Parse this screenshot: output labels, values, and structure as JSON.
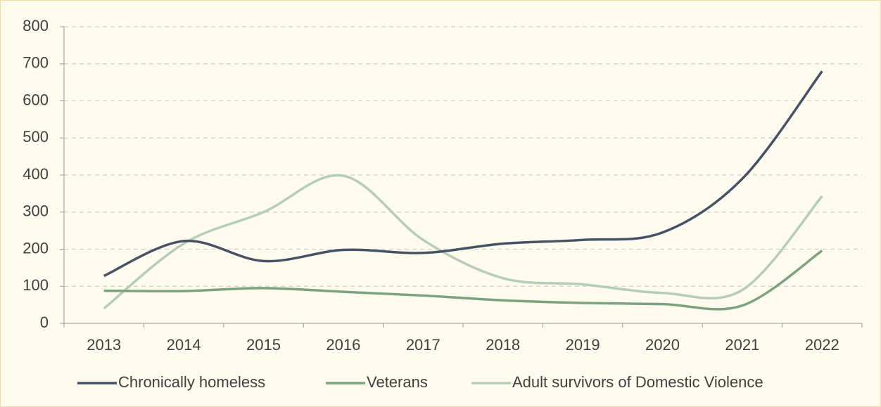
{
  "chart_data": {
    "type": "line",
    "categories": [
      "2013",
      "2014",
      "2015",
      "2016",
      "2017",
      "2018",
      "2019",
      "2020",
      "2021",
      "2022"
    ],
    "series": [
      {
        "name": "Chronically homeless",
        "color": "#465366",
        "values": [
          128,
          222,
          168,
          198,
          190,
          215,
          225,
          245,
          390,
          680
        ]
      },
      {
        "name": "Veterans",
        "color": "#7ba37e",
        "values": [
          88,
          87,
          95,
          85,
          75,
          62,
          55,
          52,
          48,
          196
        ]
      },
      {
        "name": "Adult survivors of Domestic Violence",
        "color": "#b4cfb6",
        "values": [
          40,
          215,
          300,
          398,
          225,
          122,
          105,
          82,
          90,
          343
        ]
      }
    ],
    "ylim": [
      0,
      800
    ],
    "yticks": [
      0,
      100,
      200,
      300,
      400,
      500,
      600,
      700,
      800
    ],
    "grid": true,
    "smooth": true,
    "legend": "bottom"
  }
}
